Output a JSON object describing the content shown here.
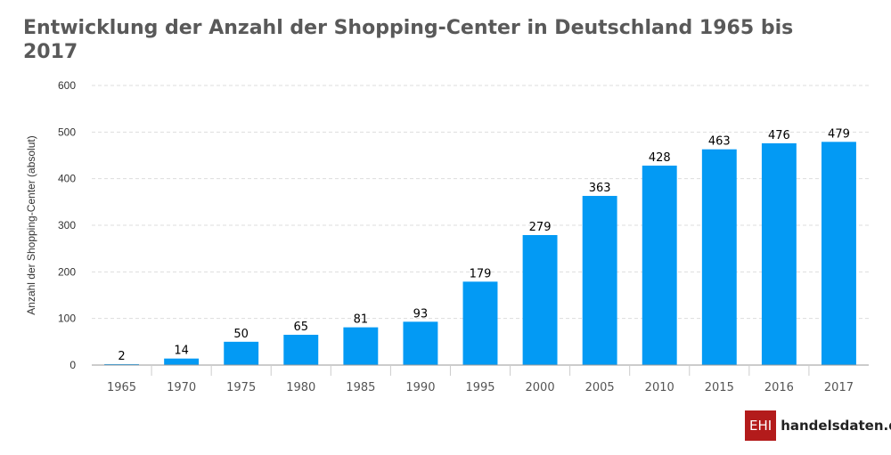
{
  "logo": {
    "box_text": "EHI",
    "site": "handelsdaten.de"
  },
  "chart_data": {
    "type": "bar",
    "title": "Entwicklung der Anzahl der Shopping-Center in Deutschland 1965 bis 2017",
    "xlabel": "",
    "ylabel": "Anzahl der Shopping-Center (absolut)",
    "ylim": [
      0,
      600
    ],
    "yticks": [
      0,
      100,
      200,
      300,
      400,
      500,
      600
    ],
    "grid": true,
    "bar_color": "#039af4",
    "categories": [
      "1965",
      "1970",
      "1975",
      "1980",
      "1985",
      "1990",
      "1995",
      "2000",
      "2005",
      "2010",
      "2015",
      "2016",
      "2017"
    ],
    "values": [
      2,
      14,
      50,
      65,
      81,
      93,
      179,
      279,
      363,
      428,
      463,
      476,
      479
    ]
  }
}
